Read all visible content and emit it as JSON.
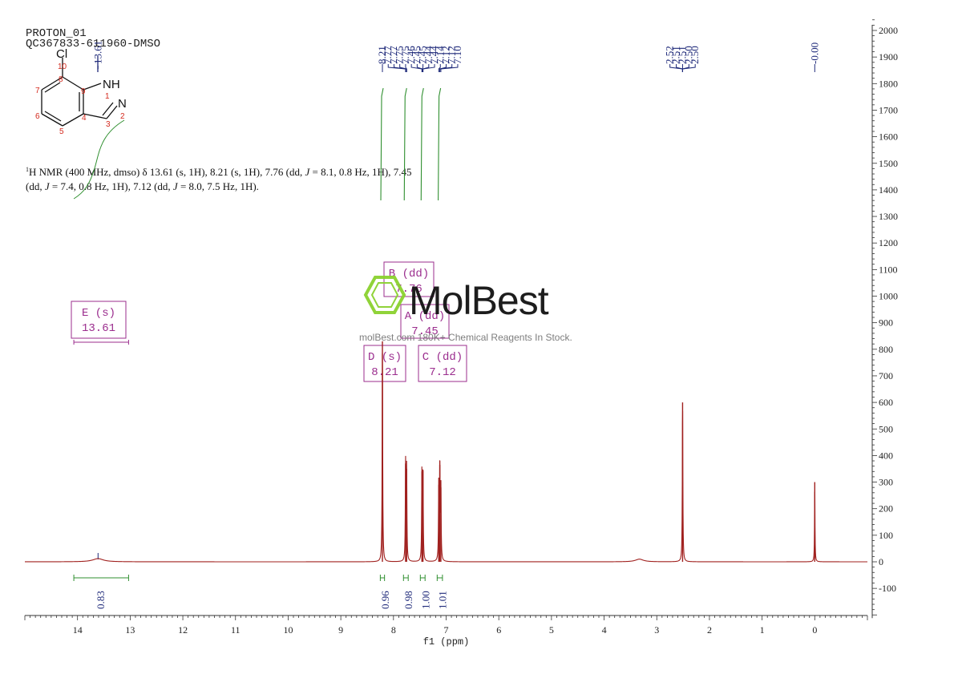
{
  "header": {
    "line1": "PROTON_01",
    "line2": "QC367833-611960-DMSO"
  },
  "molecule": {
    "substituent": "Cl",
    "nh_label": "NH",
    "n_label": "N",
    "atom_numbers": [
      "1",
      "2",
      "3",
      "4",
      "5",
      "6",
      "7",
      "8",
      "9",
      "10"
    ]
  },
  "nmr_text": {
    "superscript": "1",
    "line1_a": "H NMR (400 MHz, dmso) δ 13.61 (s, 1H), 8.21 (s, 1H), 7.76 (dd, ",
    "j1": "J",
    "line1_b": " = 8.1, 0.8 Hz, 1H), 7.45",
    "line2_a": "(dd, ",
    "j2": "J",
    "line2_b": " = 7.4, 0.8 Hz, 1H), 7.12 (dd, ",
    "j3": "J",
    "line2_c": " = 8.0, 7.5 Hz, 1H)."
  },
  "watermark": {
    "brand": "MolBest",
    "tagline": "molBest.com 180K+ Chemical Reagents In Stock."
  },
  "colors": {
    "spectrum": "#a0201e",
    "peak_label": "#1f2a7a",
    "integral": "#2f8f2f",
    "multiplet": "#9b2d8e",
    "axis": "#333333",
    "logo": "#8bd12f"
  },
  "chart_data": {
    "type": "line",
    "xlabel": "f1 (ppm)",
    "x_range": [
      15.0,
      -1.0
    ],
    "x_reversed": true,
    "y_range": [
      -200,
      2050
    ],
    "x_ticks": [
      14,
      13,
      12,
      11,
      10,
      9,
      8,
      7,
      6,
      5,
      4,
      3,
      2,
      1,
      0
    ],
    "y_ticks": [
      -100,
      0,
      100,
      200,
      300,
      400,
      500,
      600,
      700,
      800,
      900,
      1000,
      1100,
      1200,
      1300,
      1400,
      1500,
      1600,
      1700,
      1800,
      1900,
      2000
    ],
    "peaks": [
      {
        "ppm": 13.61,
        "height": 12,
        "width": 0.12
      },
      {
        "ppm": 8.21,
        "height": 830,
        "width": 0.006
      },
      {
        "ppm": 7.77,
        "height": 370,
        "width": 0.006
      },
      {
        "ppm": 7.75,
        "height": 350,
        "width": 0.006
      },
      {
        "ppm": 7.46,
        "height": 340,
        "width": 0.006
      },
      {
        "ppm": 7.44,
        "height": 345,
        "width": 0.006
      },
      {
        "ppm": 7.14,
        "height": 290,
        "width": 0.006
      },
      {
        "ppm": 7.12,
        "height": 365,
        "width": 0.006
      },
      {
        "ppm": 7.1,
        "height": 280,
        "width": 0.006
      },
      {
        "ppm": 3.33,
        "height": 10,
        "width": 0.09
      },
      {
        "ppm": 2.51,
        "height": 600,
        "width": 0.006
      },
      {
        "ppm": 0.0,
        "height": 300,
        "width": 0.005
      }
    ],
    "peak_label_groups": [
      {
        "labels": [
          "8.21",
          "7.77",
          "7.77",
          "7.75",
          "7.75",
          "7.46",
          "7.45",
          "7.45",
          "7.44",
          "7.44",
          "7.14",
          "7.12",
          "7.12",
          "7.10"
        ],
        "label_x_ppm": [
          8.21,
          8.1,
          7.99,
          7.88,
          7.77,
          7.66,
          7.55,
          7.44,
          7.33,
          7.22,
          7.11,
          7.0,
          6.89,
          6.78
        ],
        "targets_ppm": [
          8.21,
          7.77,
          7.77,
          7.75,
          7.75,
          7.46,
          7.45,
          7.45,
          7.44,
          7.44,
          7.14,
          7.12,
          7.12,
          7.1
        ]
      },
      {
        "labels": [
          "2.52",
          "2.51",
          "2.51",
          "2.50",
          "2.50"
        ],
        "label_x_ppm": [
          2.75,
          2.63,
          2.51,
          2.39,
          2.27
        ],
        "targets_ppm": [
          2.51,
          2.51,
          2.51,
          2.51,
          2.51
        ]
      },
      {
        "labels": [
          "-0.00"
        ],
        "label_x_ppm": [
          0.0
        ],
        "targets_ppm": [
          0.0
        ]
      }
    ],
    "top_label": {
      "text": "13.61",
      "ppm": 13.61
    },
    "integrals": [
      {
        "label": "0.83",
        "from": 14.07,
        "to": 13.03
      },
      {
        "label": "0.96",
        "from": 8.25,
        "to": 8.17
      },
      {
        "label": "0.98",
        "from": 7.81,
        "to": 7.72
      },
      {
        "label": "1.00",
        "from": 7.49,
        "to": 7.4
      },
      {
        "label": "1.01",
        "from": 7.17,
        "to": 7.07
      }
    ],
    "multiplets": [
      {
        "name": "E (s)",
        "value": "13.61",
        "from": 14.07,
        "to": 13.03
      },
      {
        "name": "D (s)",
        "value": "8.21",
        "from": 8.25,
        "to": 8.17
      },
      {
        "name": "B (dd)",
        "value": "7.76",
        "from": 7.81,
        "to": 7.72
      },
      {
        "name": "A (dd)",
        "value": "7.45",
        "from": 7.49,
        "to": 7.4
      },
      {
        "name": "C (dd)",
        "value": "7.12",
        "from": 7.17,
        "to": 7.07
      }
    ]
  }
}
